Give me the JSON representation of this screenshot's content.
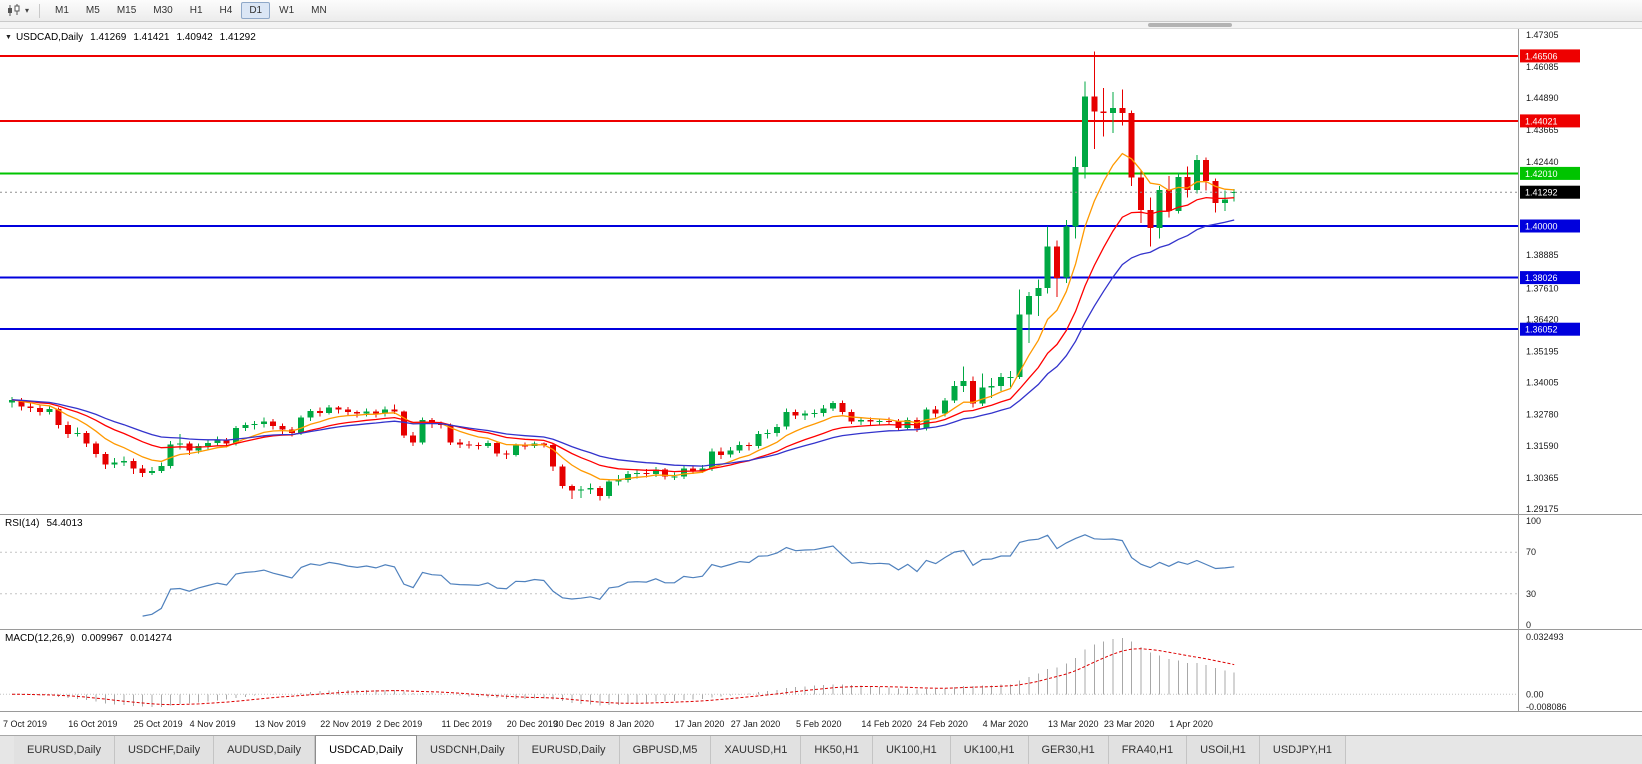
{
  "toolbar": {
    "timeframes": [
      "M1",
      "M5",
      "M15",
      "M30",
      "H1",
      "H4",
      "D1",
      "W1",
      "MN"
    ],
    "active_timeframe": "D1"
  },
  "legend": {
    "symbol": "USDCAD,Daily",
    "open": "1.41269",
    "high": "1.41421",
    "low": "1.40942",
    "close": "1.41292"
  },
  "price_axis": {
    "ticks": [
      "1.47305",
      "1.46085",
      "1.44890",
      "1.43665",
      "1.42440",
      "1.38885",
      "1.37610",
      "1.36420",
      "1.35195",
      "1.34005",
      "1.32780",
      "1.31590",
      "1.30365",
      "1.29175"
    ],
    "levels": [
      {
        "value": 1.46506,
        "label": "1.46506",
        "color": "#ee0000",
        "type": "resistance"
      },
      {
        "value": 1.44021,
        "label": "1.44021",
        "color": "#ee0000",
        "type": "resistance"
      },
      {
        "value": 1.4201,
        "label": "1.42010",
        "color": "#00c400",
        "type": "pivot"
      },
      {
        "value": 1.4,
        "label": "1.40000",
        "color": "#0000dd",
        "type": "support"
      },
      {
        "value": 1.38026,
        "label": "1.38026",
        "color": "#0000dd",
        "type": "support"
      },
      {
        "value": 1.36052,
        "label": "1.36052",
        "color": "#0000dd",
        "type": "support"
      }
    ],
    "current_price": {
      "value": 1.41292,
      "label": "1.41292",
      "bg": "#000000"
    }
  },
  "rsi_panel": {
    "label": "RSI(14)",
    "value": "54.4013",
    "scale": [
      "100",
      "70",
      "30",
      "0"
    ],
    "upper": 70,
    "lower": 30
  },
  "macd_panel": {
    "label": "MACD(12,26,9)",
    "main_value": "0.009967",
    "signal_value": "0.014274",
    "scale_top": "0.032493",
    "scale_zero": "0.00",
    "scale_bottom": "-0.008086"
  },
  "tabs": [
    {
      "label": "EURUSD,Daily",
      "active": false
    },
    {
      "label": "USDCHF,Daily",
      "active": false
    },
    {
      "label": "AUDUSD,Daily",
      "active": false
    },
    {
      "label": "USDCAD,Daily",
      "active": true
    },
    {
      "label": "USDCNH,Daily",
      "active": false
    },
    {
      "label": "EURUSD,Daily",
      "active": false
    },
    {
      "label": "GBPUSD,M5",
      "active": false
    },
    {
      "label": "XAUUSD,H1",
      "active": false
    },
    {
      "label": "HK50,H1",
      "active": false
    },
    {
      "label": "UK100,H1",
      "active": false
    },
    {
      "label": "UK100,H1",
      "active": false
    },
    {
      "label": "GER30,H1",
      "active": false
    },
    {
      "label": "FRA40,H1",
      "active": false
    },
    {
      "label": "USOil,H1",
      "active": false
    },
    {
      "label": "USDJPY,H1",
      "active": false
    }
  ],
  "chart_data": {
    "type": "candlestick",
    "symbol": "USDCAD",
    "timeframe": "Daily",
    "title": "USDCAD,Daily 1.41269 1.41421 1.40942 1.41292",
    "ylim": [
      1.29175,
      1.47305
    ],
    "colors": {
      "bull": "#00a843",
      "bear": "#e60000"
    },
    "moving_averages": [
      {
        "period": 8,
        "type": "ema",
        "color": "#ff9900"
      },
      {
        "period": 16,
        "type": "ema",
        "color": "#ff0000"
      },
      {
        "period": 25,
        "type": "ema",
        "color": "#3333cc"
      }
    ],
    "indicators": [
      {
        "name": "RSI",
        "period": 14,
        "value": 54.4013
      },
      {
        "name": "MACD",
        "fast": 12,
        "slow": 26,
        "signal": 9,
        "values": [
          0.009967,
          0.014274
        ]
      }
    ],
    "date_labels": [
      {
        "i": 0,
        "t": "7 Oct 2019"
      },
      {
        "i": 7,
        "t": "16 Oct 2019"
      },
      {
        "i": 14,
        "t": "25 Oct 2019"
      },
      {
        "i": 20,
        "t": "4 Nov 2019"
      },
      {
        "i": 27,
        "t": "13 Nov 2019"
      },
      {
        "i": 34,
        "t": "22 Nov 2019"
      },
      {
        "i": 40,
        "t": "2 Dec 2019"
      },
      {
        "i": 47,
        "t": "11 Dec 2019"
      },
      {
        "i": 54,
        "t": "20 Dec 2019"
      },
      {
        "i": 59,
        "t": "30 Dec 2019"
      },
      {
        "i": 65,
        "t": "8 Jan 2020"
      },
      {
        "i": 72,
        "t": "17 Jan 2020"
      },
      {
        "i": 78,
        "t": "27 Jan 2020"
      },
      {
        "i": 85,
        "t": "5 Feb 2020"
      },
      {
        "i": 92,
        "t": "14 Feb 2020"
      },
      {
        "i": 98,
        "t": "24 Feb 2020"
      },
      {
        "i": 105,
        "t": "4 Mar 2020"
      },
      {
        "i": 112,
        "t": "13 Mar 2020"
      },
      {
        "i": 118,
        "t": "23 Mar 2020"
      },
      {
        "i": 125,
        "t": "1 Apr 2020"
      }
    ],
    "candles": [
      [
        1.3325,
        1.3345,
        1.3305,
        1.3335
      ],
      [
        1.3335,
        1.3342,
        1.3295,
        1.331
      ],
      [
        1.331,
        1.3325,
        1.3288,
        1.3303
      ],
      [
        1.3303,
        1.3315,
        1.3275,
        1.3288
      ],
      [
        1.3288,
        1.331,
        1.3278,
        1.33
      ],
      [
        1.33,
        1.3305,
        1.3225,
        1.3238
      ],
      [
        1.3238,
        1.3252,
        1.319,
        1.3205
      ],
      [
        1.3205,
        1.323,
        1.3195,
        1.3208
      ],
      [
        1.3208,
        1.3215,
        1.3155,
        1.3168
      ],
      [
        1.3168,
        1.3175,
        1.3115,
        1.3128
      ],
      [
        1.3128,
        1.3135,
        1.307,
        1.3088
      ],
      [
        1.3088,
        1.3112,
        1.3075,
        1.3095
      ],
      [
        1.3095,
        1.3118,
        1.3082,
        1.3102
      ],
      [
        1.3102,
        1.311,
        1.3052,
        1.3072
      ],
      [
        1.3072,
        1.3085,
        1.304,
        1.3056
      ],
      [
        1.3056,
        1.3078,
        1.3048,
        1.3062
      ],
      [
        1.3062,
        1.3095,
        1.3055,
        1.3082
      ],
      [
        1.3082,
        1.3178,
        1.3072,
        1.3165
      ],
      [
        1.3165,
        1.3205,
        1.3145,
        1.3168
      ],
      [
        1.3168,
        1.3175,
        1.3125,
        1.3142
      ],
      [
        1.3142,
        1.3168,
        1.313,
        1.3158
      ],
      [
        1.3158,
        1.3182,
        1.3145,
        1.317
      ],
      [
        1.317,
        1.3195,
        1.3158,
        1.3182
      ],
      [
        1.3182,
        1.319,
        1.3152,
        1.3168
      ],
      [
        1.3168,
        1.3235,
        1.316,
        1.3228
      ],
      [
        1.3228,
        1.3248,
        1.3215,
        1.3238
      ],
      [
        1.3238,
        1.3255,
        1.3222,
        1.3242
      ],
      [
        1.3242,
        1.3268,
        1.323,
        1.3252
      ],
      [
        1.3252,
        1.3262,
        1.3222,
        1.3235
      ],
      [
        1.3235,
        1.3245,
        1.3205,
        1.3222
      ],
      [
        1.3222,
        1.3232,
        1.3195,
        1.3208
      ],
      [
        1.3208,
        1.3275,
        1.32,
        1.3268
      ],
      [
        1.3268,
        1.33,
        1.3255,
        1.3292
      ],
      [
        1.3292,
        1.3305,
        1.3272,
        1.3285
      ],
      [
        1.3285,
        1.3315,
        1.3278,
        1.3305
      ],
      [
        1.3305,
        1.3312,
        1.3282,
        1.3298
      ],
      [
        1.3298,
        1.3308,
        1.3275,
        1.3288
      ],
      [
        1.3288,
        1.3295,
        1.3268,
        1.3282
      ],
      [
        1.3282,
        1.3302,
        1.3272,
        1.329
      ],
      [
        1.329,
        1.3298,
        1.3268,
        1.3282
      ],
      [
        1.3282,
        1.331,
        1.3272,
        1.3298
      ],
      [
        1.3298,
        1.3318,
        1.328,
        1.329
      ],
      [
        1.329,
        1.3295,
        1.319,
        1.3198
      ],
      [
        1.3198,
        1.3212,
        1.3158,
        1.3172
      ],
      [
        1.3172,
        1.3268,
        1.3165,
        1.3258
      ],
      [
        1.3258,
        1.3265,
        1.3228,
        1.3242
      ],
      [
        1.3242,
        1.3252,
        1.3225,
        1.3238
      ],
      [
        1.3238,
        1.3245,
        1.3162,
        1.3172
      ],
      [
        1.3172,
        1.3185,
        1.315,
        1.3165
      ],
      [
        1.3165,
        1.3178,
        1.3148,
        1.3162
      ],
      [
        1.3162,
        1.3172,
        1.3145,
        1.3158
      ],
      [
        1.3158,
        1.318,
        1.315,
        1.317
      ],
      [
        1.317,
        1.3175,
        1.3118,
        1.313
      ],
      [
        1.313,
        1.3142,
        1.3108,
        1.3125
      ],
      [
        1.3125,
        1.3168,
        1.3118,
        1.316
      ],
      [
        1.316,
        1.3172,
        1.3145,
        1.3158
      ],
      [
        1.3158,
        1.3175,
        1.315,
        1.3168
      ],
      [
        1.3168,
        1.3172,
        1.3152,
        1.3162
      ],
      [
        1.3162,
        1.3168,
        1.3062,
        1.308
      ],
      [
        1.308,
        1.3088,
        1.2995,
        1.3005
      ],
      [
        1.3005,
        1.3012,
        1.2955,
        1.2988
      ],
      [
        1.2988,
        1.3005,
        1.296,
        1.2992
      ],
      [
        1.2992,
        1.3015,
        1.2975,
        1.2998
      ],
      [
        1.2998,
        1.3005,
        1.295,
        1.2968
      ],
      [
        1.2968,
        1.3032,
        1.2958,
        1.3022
      ],
      [
        1.3022,
        1.3048,
        1.3008,
        1.3028
      ],
      [
        1.3028,
        1.3062,
        1.3018,
        1.3052
      ],
      [
        1.3052,
        1.3068,
        1.3035,
        1.3055
      ],
      [
        1.3055,
        1.307,
        1.3038,
        1.3052
      ],
      [
        1.3052,
        1.3078,
        1.304,
        1.3068
      ],
      [
        1.3068,
        1.3075,
        1.303,
        1.3042
      ],
      [
        1.3042,
        1.3058,
        1.3028,
        1.3042
      ],
      [
        1.3042,
        1.3082,
        1.3032,
        1.3072
      ],
      [
        1.3072,
        1.308,
        1.3052,
        1.3065
      ],
      [
        1.3065,
        1.3085,
        1.3055,
        1.3072
      ],
      [
        1.3072,
        1.3148,
        1.3062,
        1.3138
      ],
      [
        1.3138,
        1.3152,
        1.3108,
        1.3125
      ],
      [
        1.3125,
        1.3155,
        1.3115,
        1.3142
      ],
      [
        1.3142,
        1.3175,
        1.3132,
        1.3162
      ],
      [
        1.3162,
        1.3172,
        1.3142,
        1.3158
      ],
      [
        1.3158,
        1.3215,
        1.3148,
        1.3205
      ],
      [
        1.3205,
        1.3222,
        1.3188,
        1.3208
      ],
      [
        1.3208,
        1.3242,
        1.3195,
        1.3232
      ],
      [
        1.3232,
        1.3302,
        1.3222,
        1.3288
      ],
      [
        1.3288,
        1.3298,
        1.3262,
        1.3275
      ],
      [
        1.3275,
        1.3295,
        1.3258,
        1.3282
      ],
      [
        1.3282,
        1.3298,
        1.3268,
        1.3285
      ],
      [
        1.3285,
        1.3315,
        1.3272,
        1.3302
      ],
      [
        1.3302,
        1.333,
        1.3292,
        1.3322
      ],
      [
        1.3322,
        1.3332,
        1.3278,
        1.3288
      ],
      [
        1.3288,
        1.3298,
        1.3242,
        1.3252
      ],
      [
        1.3252,
        1.327,
        1.3238,
        1.3258
      ],
      [
        1.3258,
        1.3268,
        1.3238,
        1.3252
      ],
      [
        1.3252,
        1.3262,
        1.324,
        1.3255
      ],
      [
        1.3255,
        1.3268,
        1.324,
        1.3252
      ],
      [
        1.3252,
        1.3262,
        1.3218,
        1.3228
      ],
      [
        1.3228,
        1.3268,
        1.3222,
        1.3258
      ],
      [
        1.3258,
        1.3268,
        1.3212,
        1.3225
      ],
      [
        1.3225,
        1.3305,
        1.3218,
        1.3298
      ],
      [
        1.3298,
        1.3312,
        1.3268,
        1.3282
      ],
      [
        1.3282,
        1.3342,
        1.3272,
        1.3332
      ],
      [
        1.3332,
        1.3408,
        1.3322,
        1.3388
      ],
      [
        1.3388,
        1.3462,
        1.3365,
        1.3408
      ],
      [
        1.3408,
        1.3425,
        1.3305,
        1.3322
      ],
      [
        1.3322,
        1.3435,
        1.3312,
        1.3382
      ],
      [
        1.3382,
        1.3418,
        1.3342,
        1.3388
      ],
      [
        1.3388,
        1.3438,
        1.3368,
        1.3422
      ],
      [
        1.3422,
        1.3445,
        1.3385,
        1.3422
      ],
      [
        1.3422,
        1.3758,
        1.3415,
        1.3662
      ],
      [
        1.3662,
        1.3748,
        1.3552,
        1.3732
      ],
      [
        1.3732,
        1.3795,
        1.3655,
        1.3762
      ],
      [
        1.3762,
        1.3998,
        1.3742,
        1.3922
      ],
      [
        1.3922,
        1.3945,
        1.3728,
        1.3802
      ],
      [
        1.3802,
        1.4022,
        1.3782,
        1.3998
      ],
      [
        1.3998,
        1.4265,
        1.3952,
        1.4225
      ],
      [
        1.4225,
        1.4552,
        1.4182,
        1.4495
      ],
      [
        1.4495,
        1.4668,
        1.4295,
        1.4438
      ],
      [
        1.4438,
        1.4528,
        1.4342,
        1.4432
      ],
      [
        1.4432,
        1.4512,
        1.4355,
        1.4452
      ],
      [
        1.4452,
        1.4522,
        1.4385,
        1.4432
      ],
      [
        1.4432,
        1.4442,
        1.4152,
        1.4185
      ],
      [
        1.4185,
        1.4212,
        1.4012,
        1.4062
      ],
      [
        1.4062,
        1.4108,
        1.3922,
        1.3992
      ],
      [
        1.3992,
        1.4152,
        1.3952,
        1.4138
      ],
      [
        1.4138,
        1.4192,
        1.4032,
        1.4058
      ],
      [
        1.4058,
        1.4205,
        1.4048,
        1.4188
      ],
      [
        1.4188,
        1.4228,
        1.4108,
        1.4138
      ],
      [
        1.4138,
        1.4272,
        1.4125,
        1.4252
      ],
      [
        1.4252,
        1.4262,
        1.4135,
        1.4172
      ],
      [
        1.4172,
        1.4182,
        1.4052,
        1.4088
      ],
      [
        1.4088,
        1.4135,
        1.4058,
        1.4102
      ],
      [
        1.41269,
        1.41421,
        1.40942,
        1.41292
      ]
    ]
  }
}
